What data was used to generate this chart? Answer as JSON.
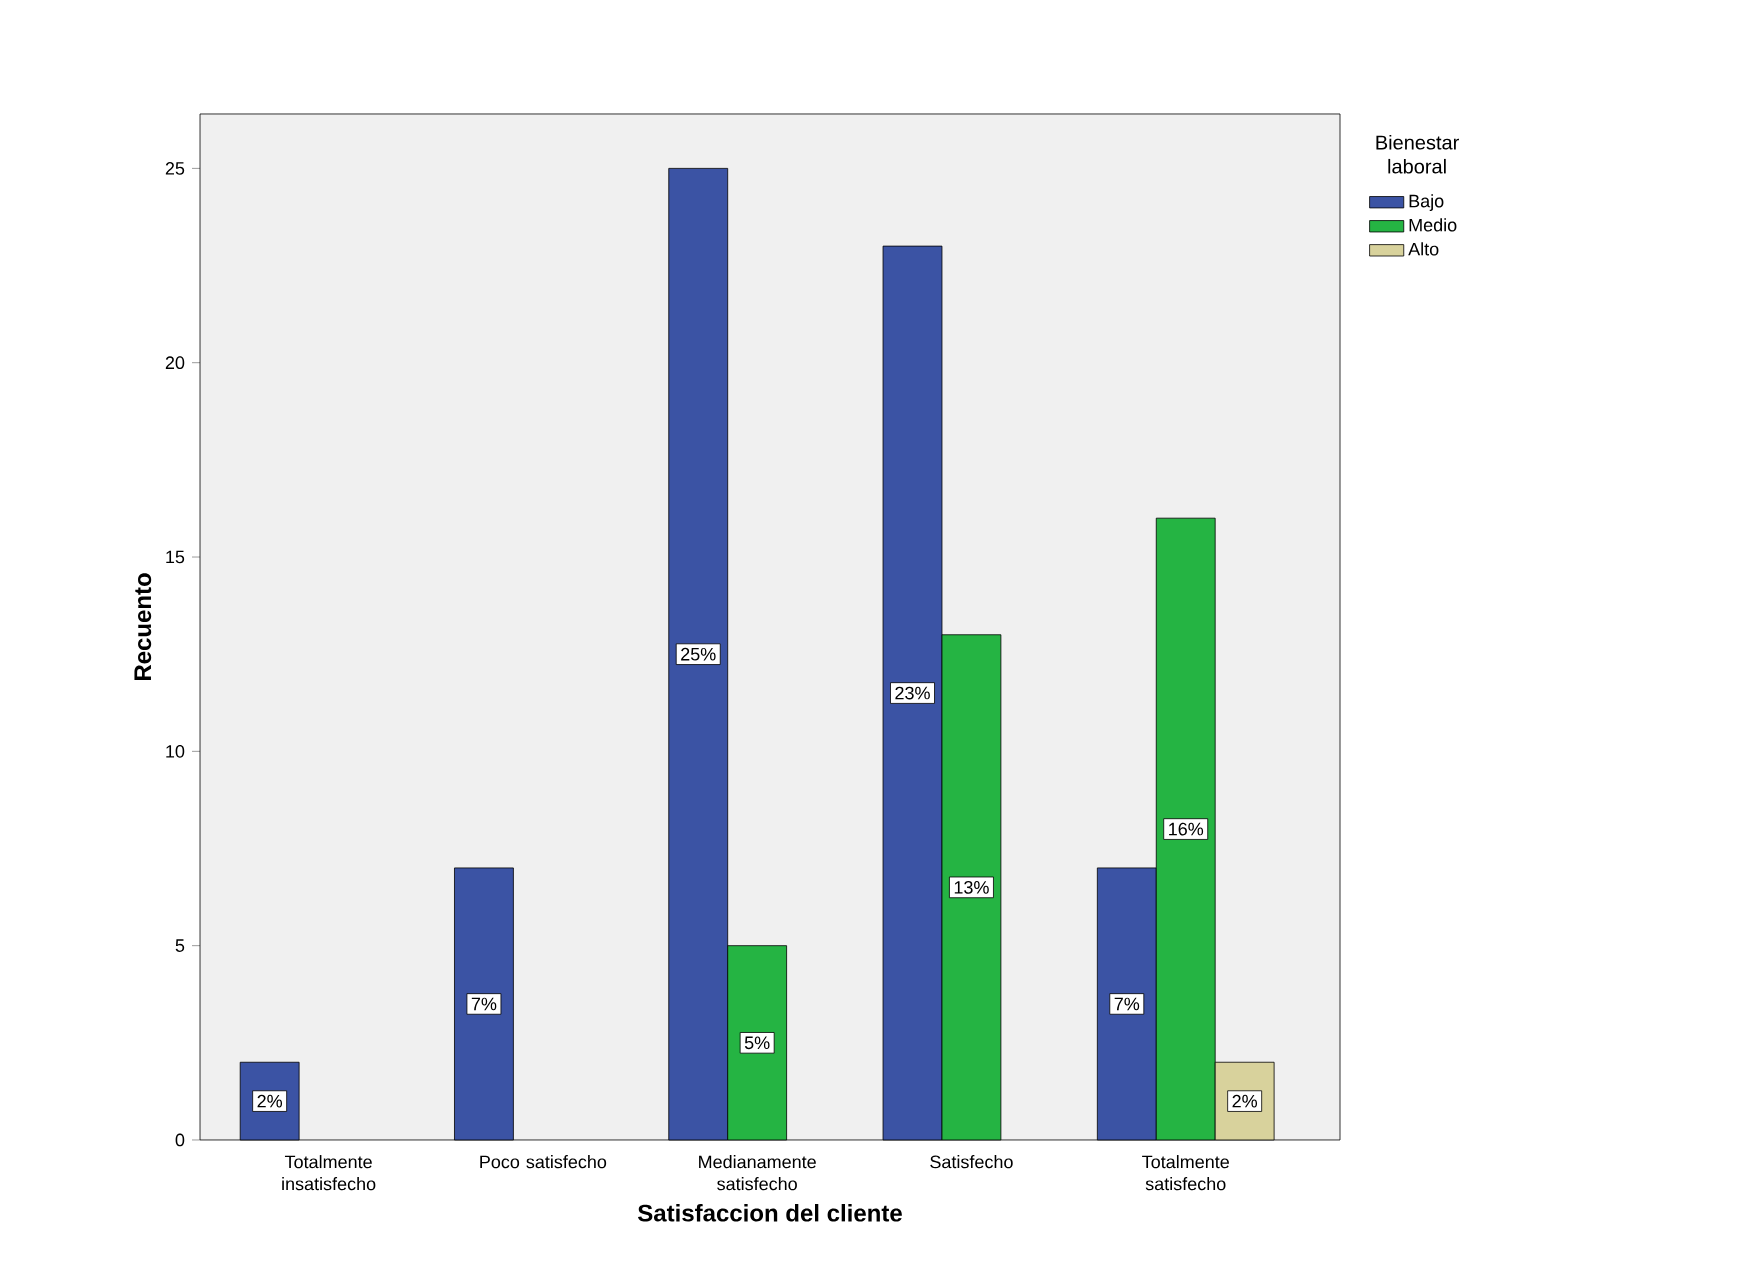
{
  "chart_data": {
    "type": "bar",
    "xlabel": "Satisfaccion del cliente",
    "ylabel": "Recuento",
    "legend_title": "Bienestar laboral",
    "categories": [
      "Totalmente insatisfecho",
      "Poco satisfecho",
      "Medianamente satisfecho",
      "Satisfecho",
      "Totalmente satisfecho"
    ],
    "series": [
      {
        "name": "Bajo",
        "color": "#3b53a4",
        "values": [
          2,
          7,
          25,
          23,
          7
        ],
        "value_labels": [
          "2%",
          "7%",
          "25%",
          "23%",
          "7%"
        ]
      },
      {
        "name": "Medio",
        "color": "#25b443",
        "values": [
          null,
          null,
          5,
          13,
          16
        ],
        "value_labels": [
          null,
          null,
          "5%",
          "13%",
          "16%"
        ]
      },
      {
        "name": "Alto",
        "color": "#d8d29c",
        "values": [
          null,
          null,
          null,
          null,
          2
        ],
        "value_labels": [
          null,
          null,
          null,
          null,
          "2%"
        ]
      }
    ],
    "ylim": [
      0,
      26.4
    ],
    "yticks": [
      0,
      5,
      10,
      15,
      20,
      25
    ],
    "grid": false,
    "legend": "top right"
  }
}
